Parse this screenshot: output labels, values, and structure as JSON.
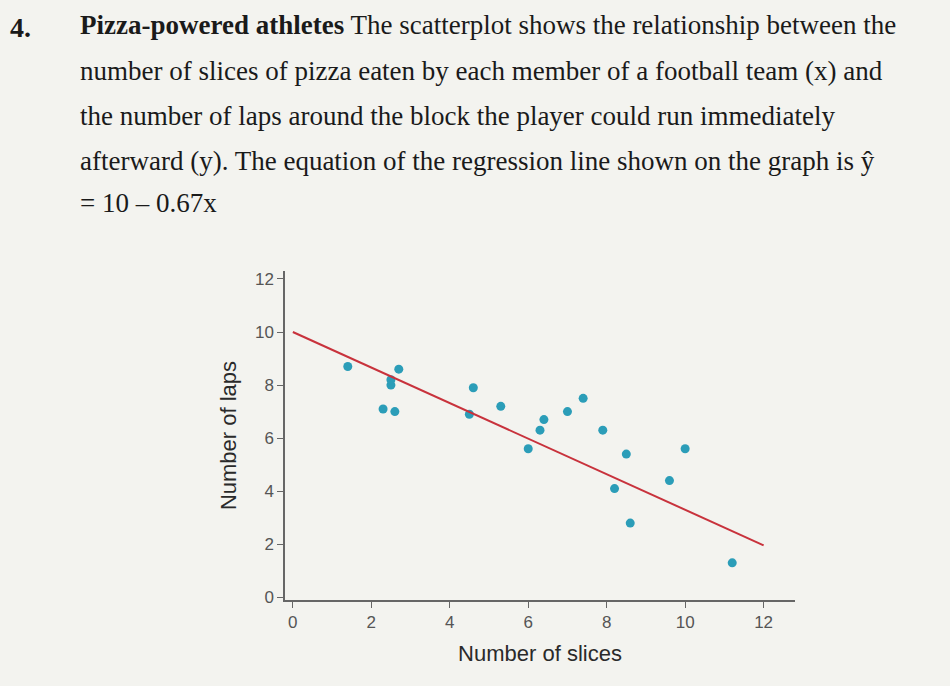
{
  "problem": {
    "number": "4.",
    "title": "Pizza-powered athletes",
    "lines": [
      " The scatterplot shows the relationship between the",
      "number of slices of pizza eaten by each member of a football team (x) and",
      "the number of laps around the block the player could run immediately",
      "afterward (y). The equation of the regression line shown on the graph is ŷ",
      "= 10 – 0.67x"
    ]
  },
  "chart_data": {
    "type": "scatter",
    "x_label": "Number of slices",
    "y_label": "Number of laps",
    "xlim": [
      -0.2,
      12.8
    ],
    "ylim": [
      -0.1,
      12.3
    ],
    "xticks": [
      0,
      2,
      4,
      6,
      8,
      10,
      12
    ],
    "yticks": [
      0,
      2,
      4,
      6,
      8,
      10,
      12
    ],
    "grid": false,
    "series": [
      {
        "type": "scatter",
        "marker": "circle",
        "color": "#2b9db8",
        "x": [
          1.4,
          2.3,
          2.6,
          2.5,
          2.5,
          2.7,
          4.5,
          4.6,
          5.3,
          6.0,
          6.3,
          6.4,
          7.0,
          7.4,
          7.9,
          8.2,
          8.5,
          8.6,
          9.6,
          10.0,
          11.2
        ],
        "values": [
          8.7,
          7.1,
          7.0,
          8.0,
          8.2,
          8.6,
          6.9,
          7.9,
          7.2,
          5.6,
          6.3,
          6.7,
          7.0,
          7.5,
          6.3,
          4.1,
          5.4,
          2.8,
          4.4,
          5.6,
          1.3
        ]
      },
      {
        "type": "line",
        "line_style": "solid",
        "color": "#c8323c",
        "x": [
          0,
          12
        ],
        "values": [
          10,
          1.96
        ]
      }
    ]
  }
}
